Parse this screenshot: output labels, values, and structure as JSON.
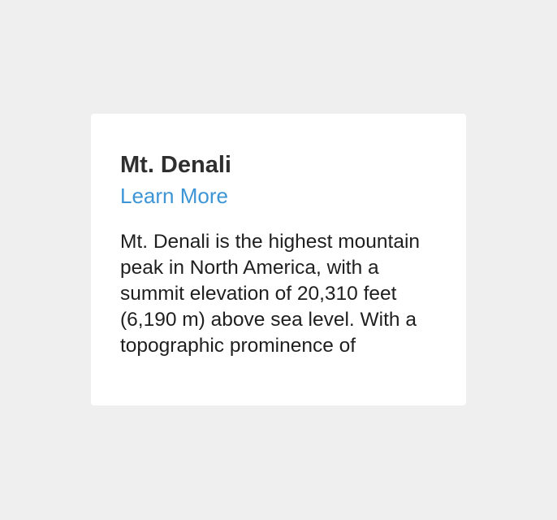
{
  "card": {
    "title": "Mt. Denali",
    "link_label": "Learn More",
    "description": "Mt. Denali is the highest mountain peak in North America, with a summit elevation of 20,310 feet (6,190 m) above sea level. With a topographic prominence of"
  },
  "colors": {
    "page_background": "#efefef",
    "card_background": "#ffffff",
    "title_text": "#2f2f2f",
    "link": "#3d95d6",
    "body_text": "#1f1f1f"
  }
}
